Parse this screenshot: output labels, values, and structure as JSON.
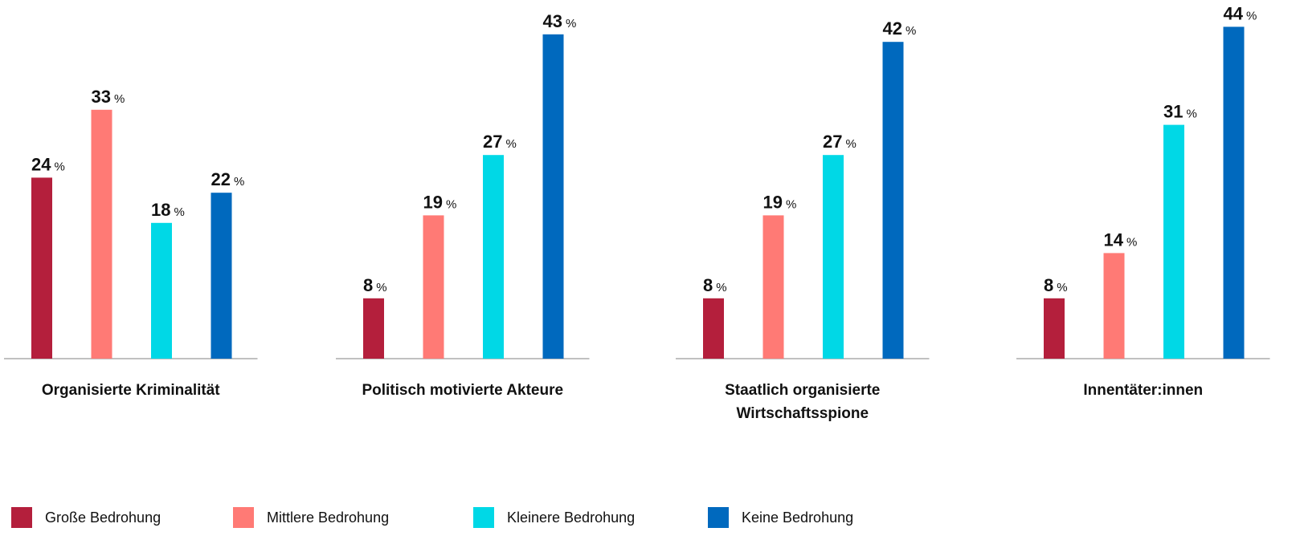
{
  "chart_data": {
    "type": "bar",
    "categories": [
      "Organisierte Kriminalität",
      "Politisch motivierte Akteure",
      "Staatlich organisierte Wirtschaftsspione",
      "Innentäter:innen"
    ],
    "value_unit": "%",
    "ylim": [
      0,
      45
    ],
    "series": [
      {
        "name": "Große Bedrohung",
        "color": "#b41f3c",
        "values": [
          24,
          8,
          8,
          8
        ]
      },
      {
        "name": "Mittlere Bedrohung",
        "color": "#ff7a75",
        "values": [
          33,
          19,
          19,
          14
        ]
      },
      {
        "name": "Kleinere Bedrohung",
        "color": "#00d8e6",
        "values": [
          18,
          27,
          27,
          31
        ]
      },
      {
        "name": "Keine Bedrohung",
        "color": "#0069be",
        "values": [
          22,
          43,
          42,
          44
        ]
      }
    ]
  }
}
